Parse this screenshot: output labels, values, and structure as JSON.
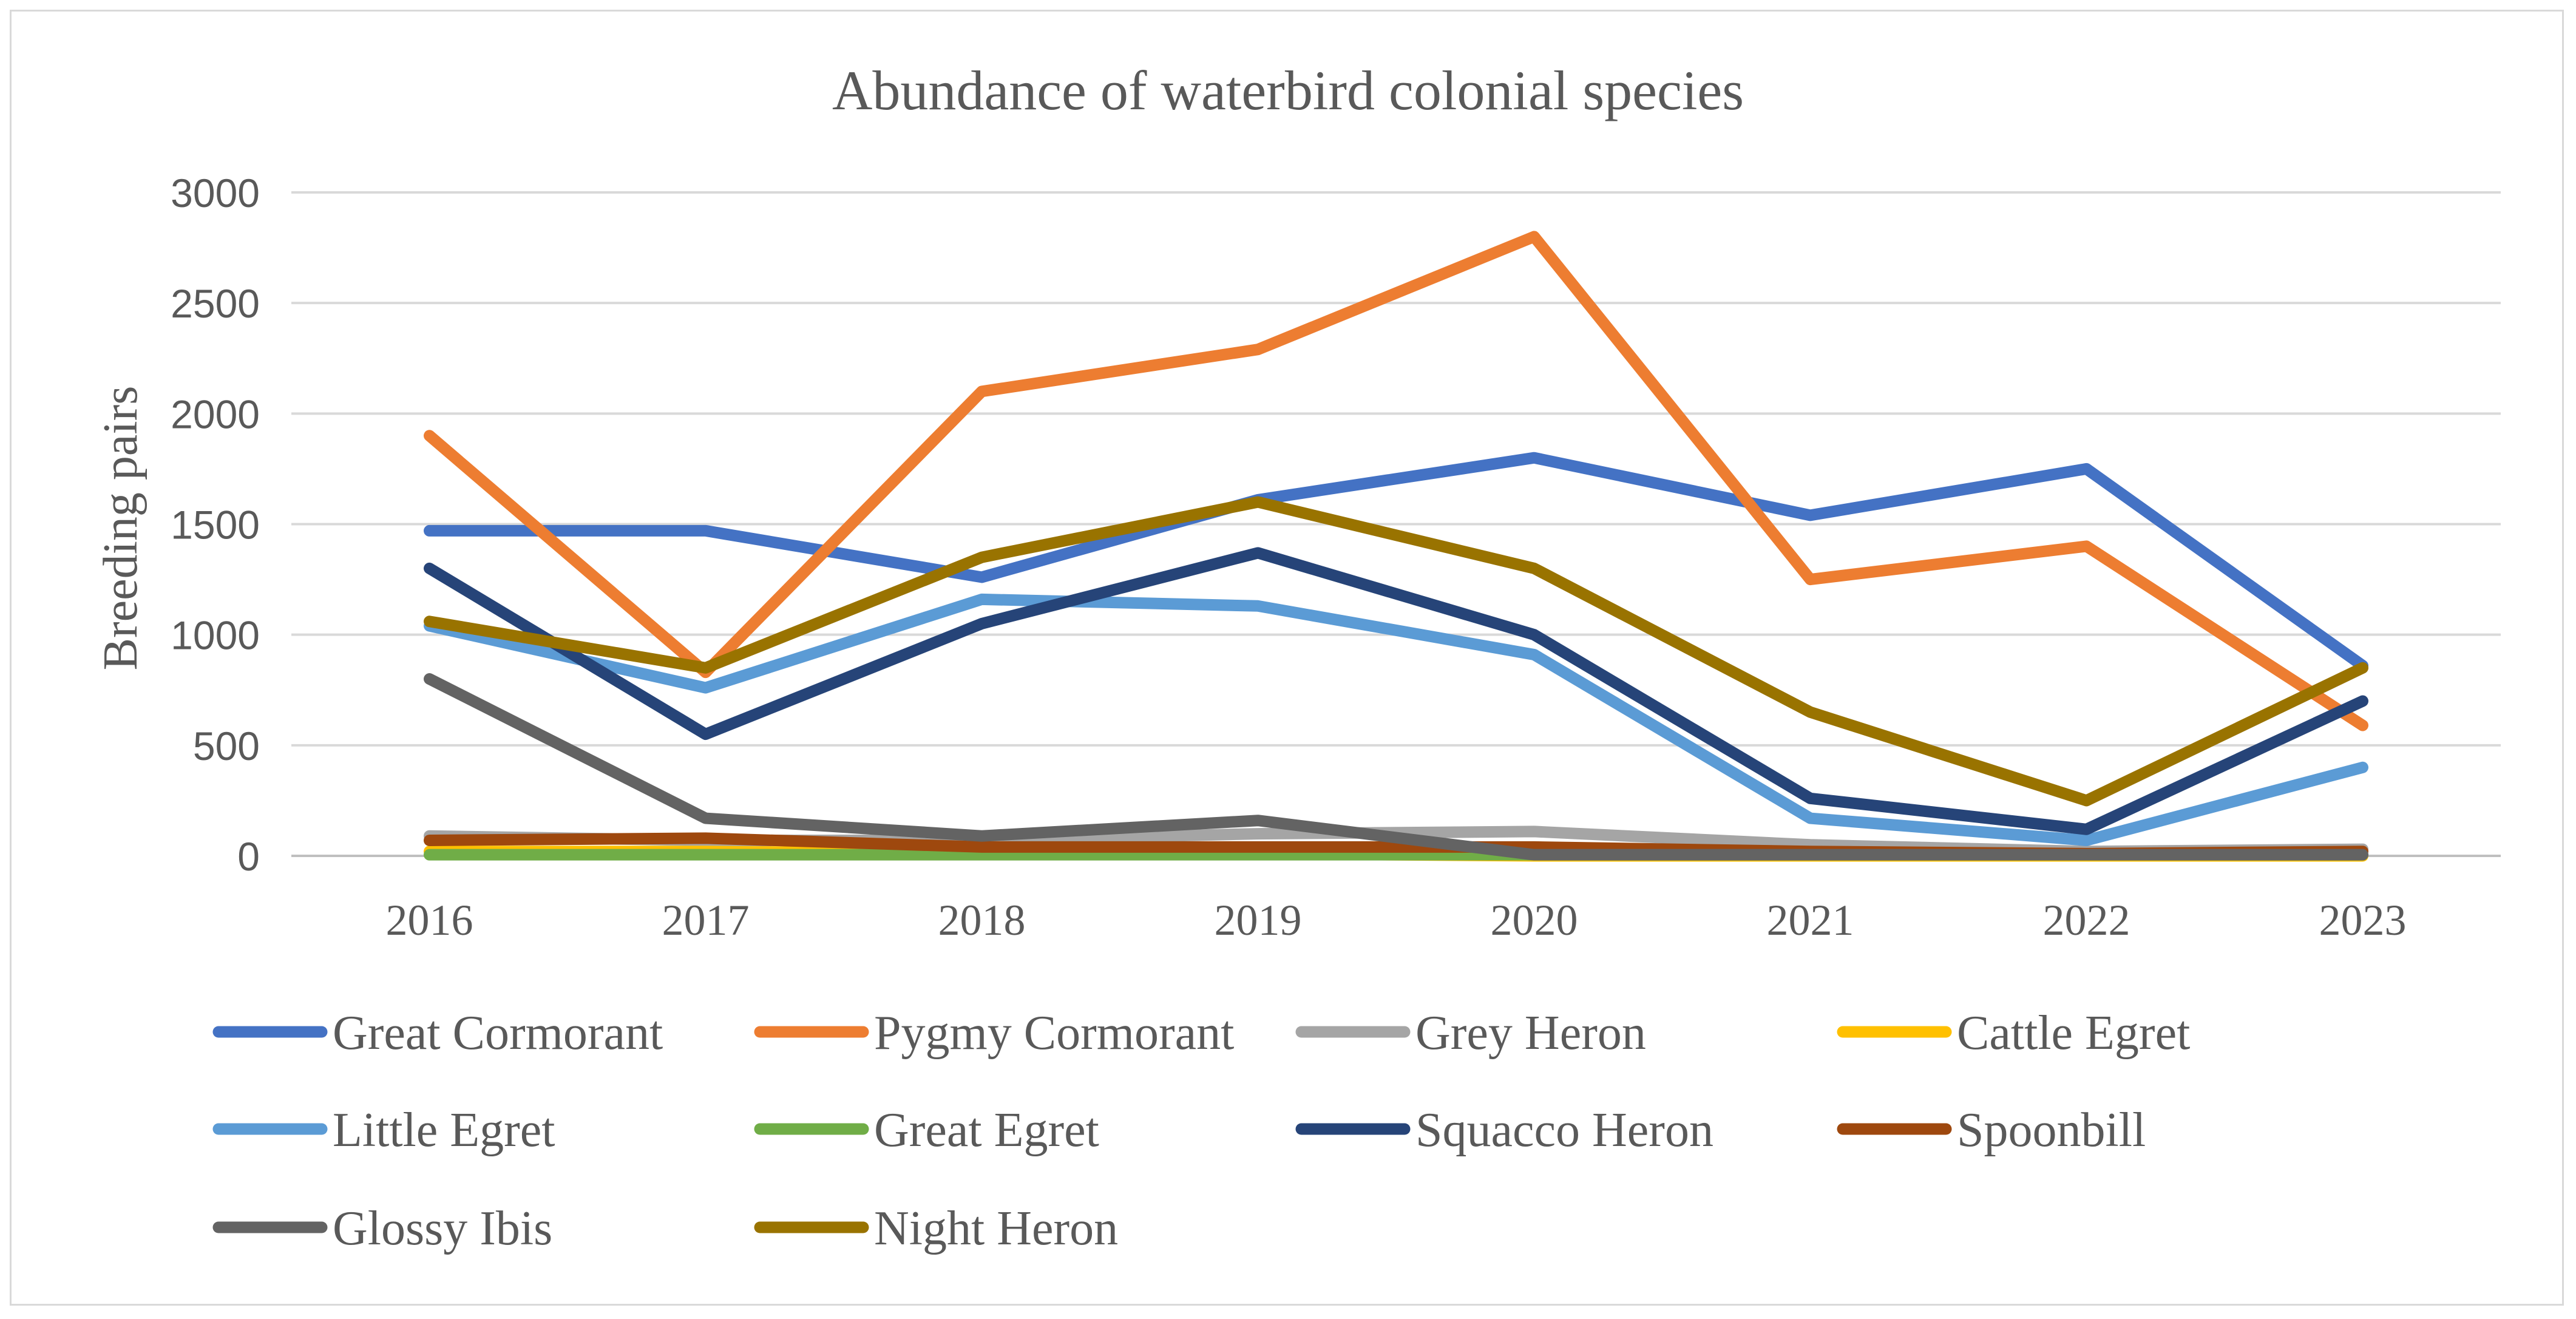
{
  "chart_data": {
    "type": "line",
    "title": "Abundance of waterbird colonial species",
    "xlabel": "",
    "ylabel": "Breeding pairs",
    "ylim": [
      0,
      3000
    ],
    "yticks": [
      "0",
      "500",
      "1000",
      "1500",
      "2000",
      "2500",
      "3000"
    ],
    "categories": [
      "2016",
      "2017",
      "2018",
      "2019",
      "2020",
      "2021",
      "2022",
      "2023"
    ],
    "grid": true,
    "legend_position": "bottom",
    "series": [
      {
        "name": "Great Cormorant",
        "color": "#4472c4",
        "values": [
          1470,
          1470,
          1260,
          1610,
          1800,
          1540,
          1750,
          860
        ]
      },
      {
        "name": "Pygmy Cormorant",
        "color": "#ed7d31",
        "values": [
          1900,
          830,
          2100,
          2290,
          2800,
          1250,
          1400,
          590
        ]
      },
      {
        "name": "Grey Heron",
        "color": "#a5a5a5",
        "values": [
          90,
          70,
          70,
          100,
          110,
          50,
          20,
          30
        ]
      },
      {
        "name": "Cattle Egret",
        "color": "#ffc000",
        "values": [
          20,
          20,
          10,
          10,
          0,
          0,
          0,
          0
        ]
      },
      {
        "name": "Little Egret",
        "color": "#5b9bd5",
        "values": [
          1040,
          760,
          1160,
          1130,
          910,
          170,
          70,
          400
        ]
      },
      {
        "name": "Great Egret",
        "color": "#70ad47",
        "values": [
          5,
          5,
          5,
          5,
          5,
          5,
          5,
          5
        ]
      },
      {
        "name": "Squacco Heron",
        "color": "#264478",
        "values": [
          1300,
          550,
          1050,
          1370,
          1000,
          260,
          120,
          700
        ]
      },
      {
        "name": "Spoonbill",
        "color": "#9e480e",
        "values": [
          70,
          80,
          40,
          40,
          40,
          20,
          10,
          20
        ]
      },
      {
        "name": "Glossy Ibis",
        "color": "#636363",
        "values": [
          800,
          170,
          90,
          160,
          5,
          5,
          5,
          5
        ]
      },
      {
        "name": "Night Heron",
        "color": "#997300",
        "values": [
          1060,
          850,
          1350,
          1600,
          1300,
          650,
          250,
          850
        ]
      }
    ]
  }
}
